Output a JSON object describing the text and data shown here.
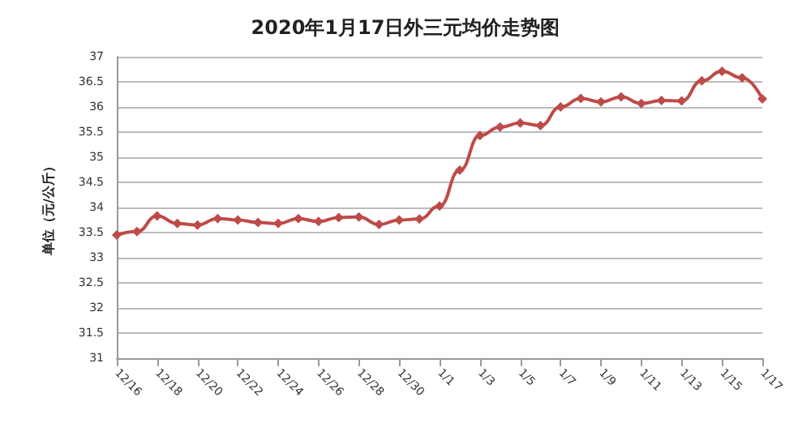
{
  "chart_data": {
    "type": "line",
    "title": "2020年1月17日外三元均价走势图",
    "ylabel": "单位（元/公斤）",
    "categories": [
      "12/16",
      null,
      "12/18",
      null,
      "12/20",
      null,
      "12/22",
      null,
      "12/24",
      null,
      "12/26",
      null,
      "12/28",
      null,
      "12/30",
      null,
      "1/1",
      null,
      "1/3",
      null,
      "1/5",
      null,
      "1/7",
      null,
      "1/9",
      null,
      "1/11",
      null,
      "1/13",
      null,
      "1/15",
      null,
      "1/17"
    ],
    "series": [
      {
        "color": "#be4b48",
        "values": [
          33.45,
          33.52,
          33.83,
          33.68,
          33.65,
          33.78,
          33.75,
          33.7,
          33.68,
          33.78,
          33.72,
          33.8,
          33.81,
          33.66,
          33.75,
          33.77,
          34.03,
          34.74,
          35.43,
          35.6,
          35.68,
          35.63,
          36.0,
          36.17,
          36.1,
          36.2,
          36.07,
          36.13,
          36.12,
          36.52,
          36.71,
          36.58,
          36.16
        ]
      }
    ],
    "ylim": [
      31,
      37
    ],
    "yticks": [
      31,
      31.5,
      32,
      32.5,
      33,
      33.5,
      34,
      34.5,
      35,
      35.5,
      36,
      36.5,
      37
    ],
    "grid": "y",
    "marker": "diamond",
    "line_style": "solid"
  }
}
